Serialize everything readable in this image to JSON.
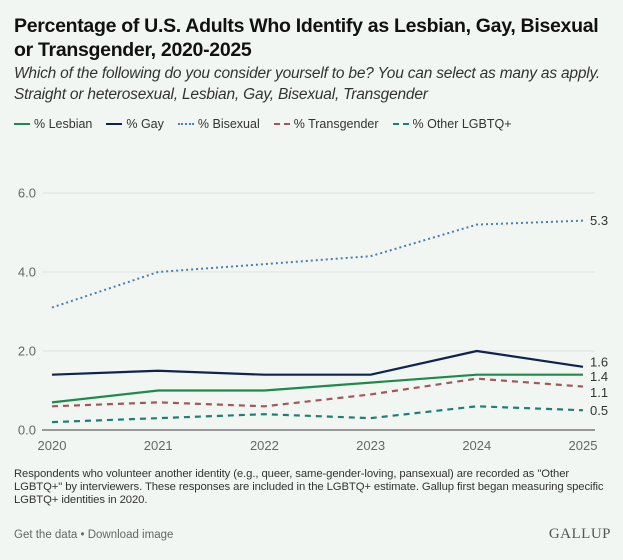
{
  "header": {
    "title": "Percentage of U.S. Adults Who Identify as Lesbian, Gay, Bisexual or Transgender, 2020-2025",
    "subtitle": "Which of the following do you consider yourself to be? You can select as many as apply. Straight or heterosexual, Lesbian, Gay, Bisexual, Transgender"
  },
  "legend": [
    {
      "label": "% Lesbian",
      "color": "#1f8a4c",
      "style": "solid"
    },
    {
      "label": "% Gay",
      "color": "#0f2350",
      "style": "solid"
    },
    {
      "label": "% Bisexual",
      "color": "#4a7fb0",
      "style": "dotted"
    },
    {
      "label": "% Transgender",
      "color": "#a0585a",
      "style": "dashed"
    },
    {
      "label": "% Other LGBTQ+",
      "color": "#1f7f78",
      "style": "dashed"
    }
  ],
  "chart_data": {
    "type": "line",
    "title": "Percentage of U.S. Adults Who Identify as Lesbian, Gay, Bisexual or Transgender, 2020-2025",
    "subtitle": "Which of the following do you consider yourself to be? You can select as many as apply. Straight or heterosexual, Lesbian, Gay, Bisexual, Transgender",
    "x": [
      "2020",
      "2021",
      "2022",
      "2023",
      "2024",
      "2025"
    ],
    "xlabel": "",
    "ylabel": "",
    "ylim": [
      0,
      6
    ],
    "yticks": [
      "0.0",
      "2.0",
      "4.0",
      "6.0"
    ],
    "ytick_values": [
      0,
      2,
      4,
      6
    ],
    "grid": true,
    "legend_position": "top-left",
    "series": [
      {
        "name": "% Lesbian",
        "color": "#1f8a4c",
        "style": "solid",
        "values": [
          0.7,
          1.0,
          1.0,
          1.2,
          1.4,
          1.4
        ],
        "end_label": "1.4"
      },
      {
        "name": "% Gay",
        "color": "#0f2350",
        "style": "solid",
        "values": [
          1.4,
          1.5,
          1.4,
          1.4,
          2.0,
          1.6
        ],
        "end_label": "1.6"
      },
      {
        "name": "% Bisexual",
        "color": "#4a7fb0",
        "style": "dotted",
        "values": [
          3.1,
          4.0,
          4.2,
          4.4,
          5.2,
          5.3
        ],
        "end_label": "5.3"
      },
      {
        "name": "% Transgender",
        "color": "#a0585a",
        "style": "dashed",
        "values": [
          0.6,
          0.7,
          0.6,
          0.9,
          1.3,
          1.1
        ],
        "end_label": "1.1"
      },
      {
        "name": "% Other LGBTQ+",
        "color": "#1f7f78",
        "style": "dashed",
        "values": [
          0.2,
          0.3,
          0.4,
          0.3,
          0.6,
          0.5
        ],
        "end_label": "0.5"
      }
    ]
  },
  "footnote": "Respondents who volunteer another identity (e.g., queer, same-gender-loving, pansexual) are recorded as \"Other LGBTQ+\" by interviewers. These responses are included in the LGBTQ+ estimate. Gallup first began measuring specific LGBTQ+ identities in 2020.",
  "footer": {
    "get_data": "Get the data",
    "separator": " • ",
    "download": "Download image",
    "logo": "GALLUP"
  }
}
